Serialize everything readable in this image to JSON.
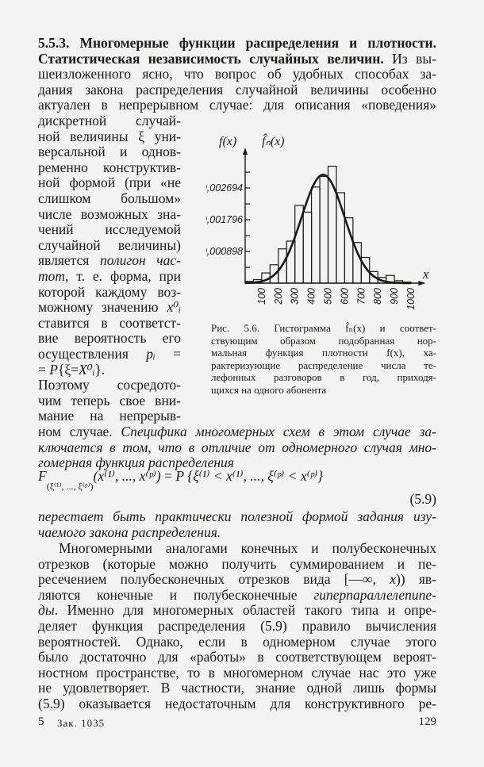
{
  "top_lines": [
    [
      {
        "t": "5.5.3. Многомерные функции распределения и плотности.",
        "s": "b"
      }
    ],
    [
      {
        "t": "Статистическая независимость случайных величин.",
        "s": "b"
      },
      {
        "t": " Из вы-",
        "s": "r"
      }
    ],
    [
      {
        "t": "шеизложенного  ясно, что вопрос об удобных способах за-",
        "s": "r"
      }
    ],
    [
      {
        "t": "дания закона распределения случайной величины особенно",
        "s": "r"
      }
    ],
    [
      {
        "t": "актуален в непрерывном случае: для описания «поведения»",
        "s": "r"
      }
    ]
  ],
  "col_lines": [
    [
      {
        "t": "дискретной  случай-",
        "s": "r"
      }
    ],
    [
      {
        "t": "ной величины ξ уни-",
        "s": "r"
      }
    ],
    [
      {
        "t": "версальной и однов-",
        "s": "r"
      }
    ],
    [
      {
        "t": "ременно конструктив-",
        "s": "r"
      }
    ],
    [
      {
        "t": "ной формой (при «не",
        "s": "r"
      }
    ],
    [
      {
        "t": "слишком  большом»",
        "s": "r"
      }
    ],
    [
      {
        "t": "числе возможных зна-",
        "s": "r"
      }
    ],
    [
      {
        "t": "чений  исследуемой",
        "s": "r"
      }
    ],
    [
      {
        "t": "случайной величины)",
        "s": "r"
      }
    ],
    [
      {
        "t": "является ",
        "s": "r"
      },
      {
        "t": "полигон час-",
        "s": "i"
      }
    ],
    [
      {
        "t": "тот",
        "s": "i"
      },
      {
        "t": ", т. е. форма, при",
        "s": "r"
      }
    ],
    [
      {
        "t": "которой каждому воз-",
        "s": "r"
      }
    ],
    [
      {
        "t": "можному значению ",
        "s": "r"
      },
      {
        "t": "x⁰ᵢ",
        "s": "i"
      }
    ],
    [
      {
        "t": "ставится в соответст-",
        "s": "r"
      }
    ],
    [
      {
        "t": "вие вероятность его",
        "s": "r"
      }
    ],
    [
      {
        "t": "осуществления ",
        "s": "r"
      },
      {
        "t": "pᵢ",
        "s": "i"
      },
      {
        "t": " =",
        "s": "r"
      }
    ],
    [
      {
        "t": "= ",
        "s": "r"
      },
      {
        "t": "P",
        "s": "i"
      },
      {
        "t": "{ξ=",
        "s": "r"
      },
      {
        "t": "X⁰ᵢ",
        "s": "i"
      },
      {
        "t": "}.",
        "s": "r"
      }
    ],
    [
      {
        "t": "Поэтому  сосредото-",
        "s": "r"
      }
    ],
    [
      {
        "t": "чим теперь свое вни-",
        "s": "r"
      }
    ],
    [
      {
        "t": "мание на непрерыв-",
        "s": "r"
      }
    ]
  ],
  "mid_lines": [
    [
      {
        "t": "ном случае. ",
        "s": "r"
      },
      {
        "t": "Специфика многомерных схем в этом случае за-",
        "s": "i"
      }
    ],
    [
      {
        "t": "ключается в том, что в отличие от одномерного случая мно-",
        "s": "i"
      }
    ],
    [
      {
        "t": "гомерная функция распределения",
        "s": "i"
      }
    ]
  ],
  "formula": {
    "F": "F",
    "sub": "(ξ⁽¹⁾, ..., ξ⁽ᵖ⁾)",
    "args": "(x⁽¹⁾, ...,  x⁽ᵖ⁾)",
    "eq": " = ",
    "P": "P",
    "rhs": " {ξ⁽¹⁾ < x⁽¹⁾, ..., ξ⁽ᵖ⁾ < x⁽ᵖ⁾}",
    "number": "(5.9)"
  },
  "after_lines": [
    [
      {
        "t": "перестает быть практически полезной формой задания изу-",
        "s": "i"
      }
    ],
    [
      {
        "t": "чаемого закона распределения.",
        "s": "i"
      }
    ]
  ],
  "bottom_lines": [
    [
      {
        "t": "Многомерными аналогами конечных и полубесконечных",
        "s": "r"
      }
    ],
    [
      {
        "t": "отрезков (которые можно получить суммированием и пе-",
        "s": "r"
      }
    ],
    [
      {
        "t": "ресечением полубесконечных отрезков вида [—∞, ",
        "s": "r"
      },
      {
        "t": "x",
        "s": "i"
      },
      {
        "t": ")) яв-",
        "s": "r"
      }
    ],
    [
      {
        "t": "ляются конечные и полубесконечные  ",
        "s": "r"
      },
      {
        "t": "гиперпараллелепипе-",
        "s": "i"
      }
    ],
    [
      {
        "t": "ды",
        "s": "i"
      },
      {
        "t": ".  Именно для многомерных областей такого типа и опре-",
        "s": "r"
      }
    ],
    [
      {
        "t": "деляет функция распределения (5.9) правило вычисления",
        "s": "r"
      }
    ],
    [
      {
        "t": "вероятностей. Однако, если в одномерном случае этого",
        "s": "r"
      }
    ],
    [
      {
        "t": "было достаточно для «работы» в соответствующем вероят-",
        "s": "r"
      }
    ],
    [
      {
        "t": "ностном пространстве, то в многомерном случае нас это уже",
        "s": "r"
      }
    ],
    [
      {
        "t": "не удовлетворяет. В частности, знание одной лишь формы",
        "s": "r"
      }
    ],
    [
      {
        "t": "(5.9) оказывается недостаточным для конструктивного ре-",
        "s": "r"
      }
    ]
  ],
  "caption_lines": [
    "Рис. 5.6. Гистограмма f̂ₙ(x) и соответ-",
    "ствующим образом подобранная нор-",
    "мальная функция  плотности f(x), ха-",
    "рактеризующие распределение числа те-",
    "лефонных разговоров в год,  приходя-",
    "щихся на одного абонента"
  ],
  "footer": {
    "signature": "5",
    "order": "Зак. 1035",
    "page_number": "129"
  },
  "chart_data": {
    "type": "bar",
    "subtype": "histogram with fitted normal density curve",
    "y_axis_labels": [
      "f(x)",
      "f̂ₙ(x)"
    ],
    "xlabel": "x",
    "x_ticks": [
      "100",
      "200",
      "300",
      "400",
      "500",
      "600",
      "700",
      "800",
      "900",
      "1000"
    ],
    "y_ticks": [
      "0,000898",
      "0,001796",
      "0,002694"
    ],
    "y_tick_values": [
      0.000898,
      0.001796,
      0.002694
    ],
    "xlim": [
      0,
      1050
    ],
    "ylim": [
      0,
      0.0034
    ],
    "bin_width": 50,
    "bin_starts": [
      0,
      50,
      100,
      150,
      200,
      250,
      300,
      350,
      400,
      450,
      500,
      550,
      600,
      650,
      700,
      750,
      800,
      850,
      900,
      950
    ],
    "histogram": [
      5e-05,
      0.0001,
      0.00029,
      0.00052,
      0.00097,
      0.00119,
      0.0022,
      0.00201,
      0.00272,
      0.00302,
      0.00331,
      0.00256,
      0.00185,
      0.00115,
      0.00073,
      0.00033,
      0.00016,
      0.00022,
      7e-05,
      3e-05
    ],
    "normal_curve": {
      "mean": 470,
      "sd": 130
    },
    "grid": false,
    "colors": {
      "ink": "#1a1a1a",
      "paper": "#f3f3f1"
    }
  }
}
